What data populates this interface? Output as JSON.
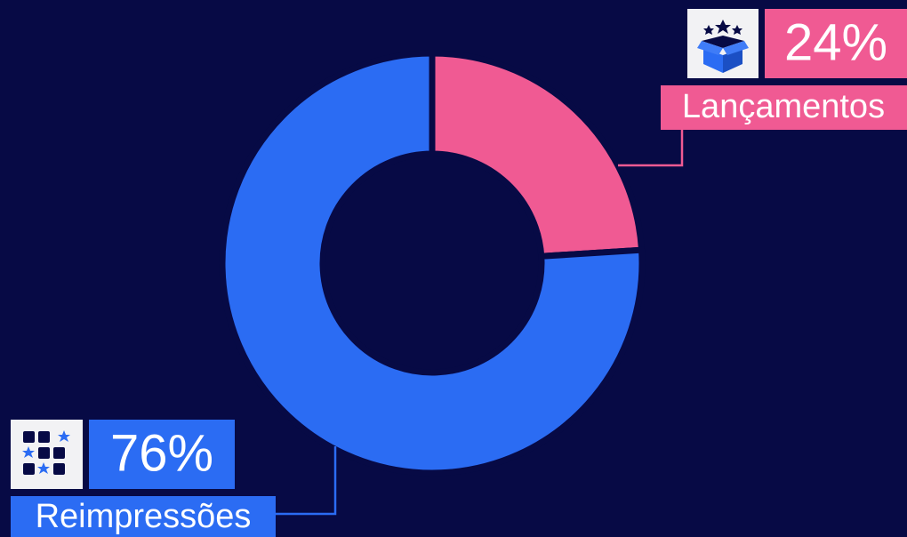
{
  "chart_data": {
    "type": "pie",
    "donut": true,
    "categories": [
      "Lançamentos",
      "Reimpressões"
    ],
    "values": [
      24,
      76
    ],
    "value_labels": [
      "24%",
      "76%"
    ],
    "colors": [
      "#f05a93",
      "#2b6cf3"
    ]
  }
}
